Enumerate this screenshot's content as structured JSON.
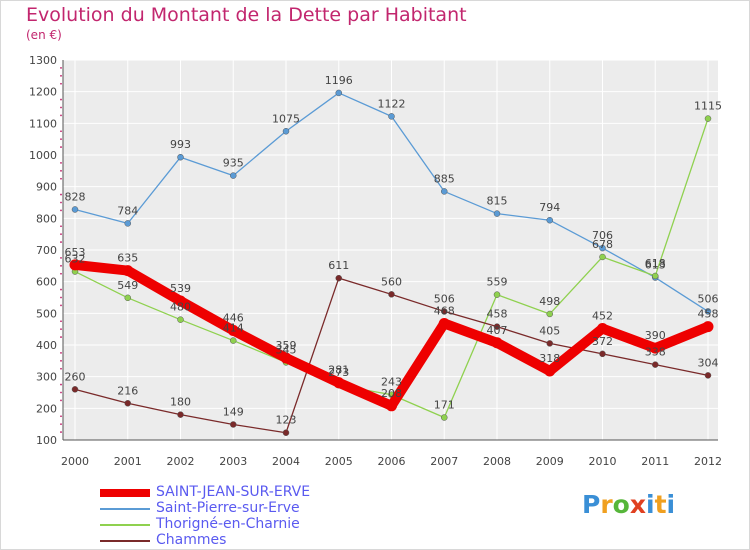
{
  "header": {
    "title": "Evolution du Montant de la Dette par Habitant",
    "subtitle": "(en €)"
  },
  "logo": {
    "text": "Proxiti"
  },
  "chart_data": {
    "type": "line",
    "x": [
      "2000",
      "2001",
      "2002",
      "2003",
      "2004",
      "2005",
      "2006",
      "2007",
      "2008",
      "2009",
      "2010",
      "2011",
      "2012"
    ],
    "ylim": [
      100,
      1300
    ],
    "yticks": [
      100,
      200,
      300,
      400,
      500,
      600,
      700,
      800,
      900,
      1000,
      1100,
      1200,
      1300
    ],
    "grid": true,
    "legend_position": "bottom-left",
    "series": [
      {
        "name": "SAINT-JEAN-SUR-ERVE",
        "color": "#ee0000",
        "width": 10,
        "values": [
          653,
          635,
          539,
          446,
          359,
          281,
          208,
          468,
          407,
          318,
          452,
          390,
          458
        ],
        "labels": [
          "653",
          "635",
          "539",
          "446",
          "359",
          "281",
          "208",
          "468",
          "407",
          "318",
          "452",
          "390",
          "458"
        ]
      },
      {
        "name": "Saint-Pierre-sur-Erve",
        "color": "#5b9bd5",
        "width": 1.3,
        "values": [
          828,
          784,
          993,
          935,
          1075,
          1196,
          1122,
          885,
          815,
          794,
          706,
          613,
          506
        ],
        "labels": [
          "828",
          "784",
          "993",
          "935",
          "1075",
          "1196",
          "1122",
          "885",
          "815",
          "794",
          "706",
          "613",
          "506"
        ]
      },
      {
        "name": "Thorigné-en-Charnie",
        "color": "#8fd14f",
        "width": 1.3,
        "values": [
          632,
          549,
          480,
          414,
          345,
          273,
          243,
          171,
          559,
          498,
          678,
          618,
          1115
        ],
        "labels": [
          "632",
          "549",
          "480",
          "414",
          "345",
          "273",
          "243",
          "171",
          "559",
          "498",
          "678",
          "618",
          "1115"
        ]
      },
      {
        "name": "Chammes",
        "color": "#7a2a2a",
        "width": 1.3,
        "values": [
          260,
          216,
          180,
          149,
          123,
          611,
          560,
          506,
          458,
          405,
          372,
          338,
          304
        ],
        "labels": [
          "260",
          "216",
          "180",
          "149",
          "123",
          "611",
          "560",
          "506",
          "458",
          "405",
          "372",
          "338",
          "304"
        ]
      }
    ]
  }
}
